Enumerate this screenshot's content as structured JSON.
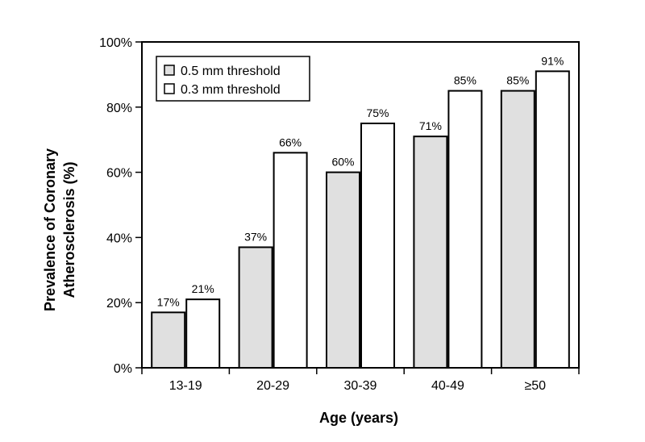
{
  "chart_data": {
    "type": "bar",
    "categories": [
      "13-19",
      "20-29",
      "30-39",
      "40-49",
      "≥50"
    ],
    "series": [
      {
        "name": "0.5 mm threshold",
        "values": [
          17,
          37,
          60,
          71,
          85
        ],
        "labels": [
          "17%",
          "37%",
          "60%",
          "71%",
          "85%"
        ],
        "color": "#e0e0e0"
      },
      {
        "name": "0.3 mm threshold",
        "values": [
          21,
          66,
          75,
          85,
          91
        ],
        "labels": [
          "21%",
          "66%",
          "75%",
          "85%",
          "91%"
        ],
        "color": "#ffffff"
      }
    ],
    "ylabel_lines": [
      "Prevalence of Coronary",
      "Atherosclerosis (%)"
    ],
    "xlabel": "Age (years)",
    "ylim": [
      0,
      100
    ],
    "yticks": [
      0,
      20,
      40,
      60,
      80,
      100
    ],
    "ytick_labels": [
      "0%",
      "20%",
      "40%",
      "60%",
      "80%",
      "100%"
    ],
    "legend_position": "top-left",
    "grid": false
  }
}
